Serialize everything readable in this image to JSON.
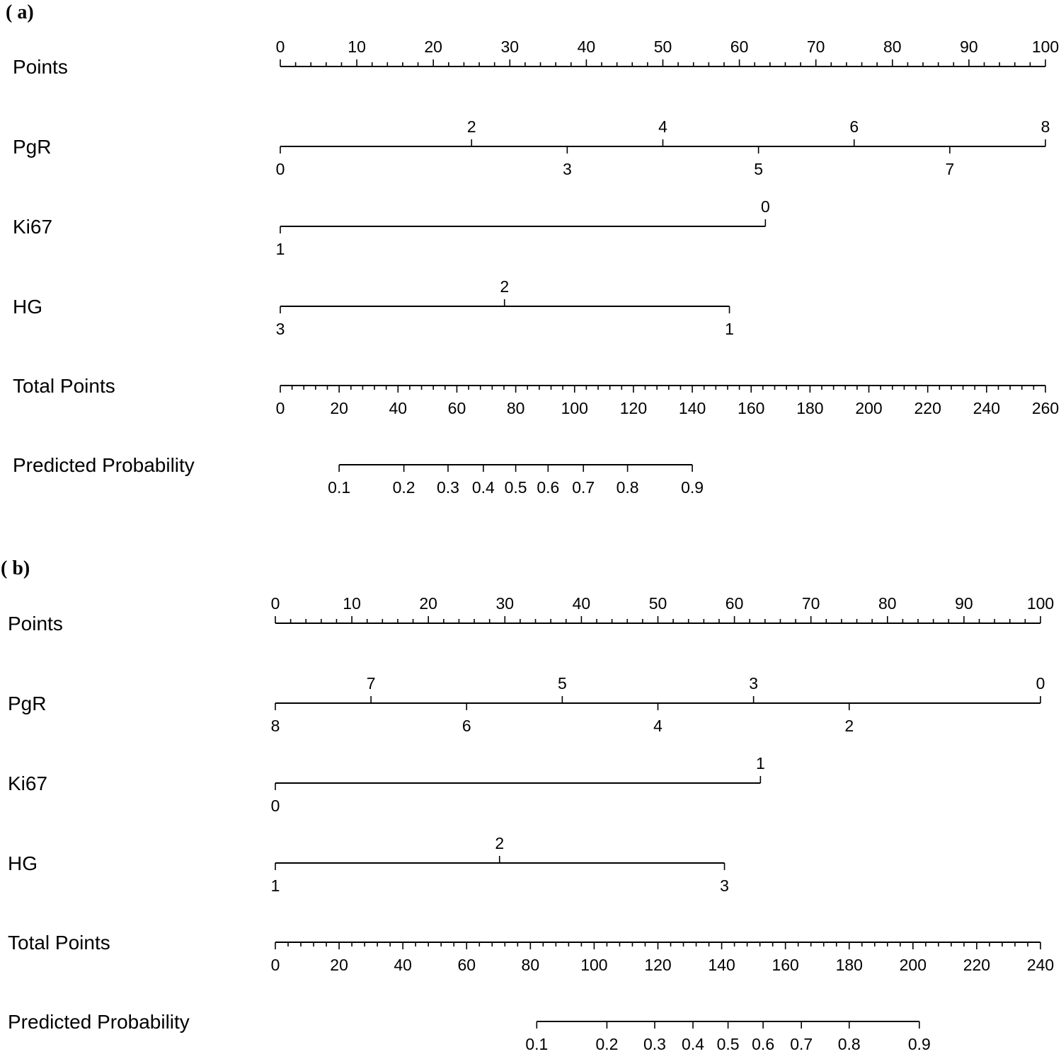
{
  "chart_data": [
    {
      "type": "nomogram",
      "panel_label": "( a)",
      "rows": [
        {
          "key": "points",
          "label": "Points",
          "scale": "points",
          "ticks_major": [
            0,
            10,
            20,
            30,
            40,
            50,
            60,
            70,
            80,
            90,
            100
          ],
          "minor_step": 2,
          "range": [
            0,
            100
          ]
        },
        {
          "key": "pgr",
          "label": "PgR",
          "levels_above": [
            {
              "value": "2",
              "points": 25
            },
            {
              "value": "4",
              "points": 50
            },
            {
              "value": "6",
              "points": 75
            },
            {
              "value": "8",
              "points": 100
            }
          ],
          "levels_below": [
            {
              "value": "0",
              "points": 0
            },
            {
              "value": "3",
              "points": 37.5
            },
            {
              "value": "5",
              "points": 62.5
            },
            {
              "value": "7",
              "points": 87.5
            }
          ],
          "range": [
            0,
            100
          ]
        },
        {
          "key": "ki67",
          "label": "Ki67",
          "levels_above": [
            {
              "value": "0",
              "points": 63.4
            }
          ],
          "levels_below": [
            {
              "value": "1",
              "points": 0
            }
          ],
          "range": [
            0,
            63.4
          ]
        },
        {
          "key": "hg",
          "label": "HG",
          "levels_above": [
            {
              "value": "2",
              "points": 29.3
            }
          ],
          "levels_below": [
            {
              "value": "3",
              "points": 0
            },
            {
              "value": "1",
              "points": 58.7
            }
          ],
          "range": [
            0,
            58.7
          ]
        },
        {
          "key": "total",
          "label": "Total Points",
          "scale": "total",
          "ticks_major": [
            0,
            20,
            40,
            60,
            80,
            100,
            120,
            140,
            160,
            180,
            200,
            220,
            240,
            260
          ],
          "minor_step": 4,
          "range": [
            0,
            260
          ]
        },
        {
          "key": "prob",
          "label": "Predicted Probability",
          "levels_below": [
            {
              "value": "0.1",
              "total": 20
            },
            {
              "value": "0.2",
              "total": 42
            },
            {
              "value": "0.3",
              "total": 57
            },
            {
              "value": "0.4",
              "total": 69
            },
            {
              "value": "0.5",
              "total": 80
            },
            {
              "value": "0.6",
              "total": 91
            },
            {
              "value": "0.7",
              "total": 103
            },
            {
              "value": "0.8",
              "total": 118
            },
            {
              "value": "0.9",
              "total": 140
            }
          ],
          "range_total": [
            20,
            140
          ]
        }
      ]
    },
    {
      "type": "nomogram",
      "panel_label": "( b)",
      "rows": [
        {
          "key": "points",
          "label": "Points",
          "scale": "points",
          "ticks_major": [
            0,
            10,
            20,
            30,
            40,
            50,
            60,
            70,
            80,
            90,
            100
          ],
          "minor_step": 2,
          "range": [
            0,
            100
          ]
        },
        {
          "key": "pgr",
          "label": "PgR",
          "levels_above": [
            {
              "value": "7",
              "points": 12.5
            },
            {
              "value": "5",
              "points": 37.5
            },
            {
              "value": "3",
              "points": 62.5
            },
            {
              "value": "0",
              "points": 100
            }
          ],
          "levels_below": [
            {
              "value": "8",
              "points": 0
            },
            {
              "value": "6",
              "points": 25
            },
            {
              "value": "4",
              "points": 50
            },
            {
              "value": "2",
              "points": 75
            }
          ],
          "range": [
            0,
            100
          ]
        },
        {
          "key": "ki67",
          "label": "Ki67",
          "levels_above": [
            {
              "value": "1",
              "points": 63.4
            }
          ],
          "levels_below": [
            {
              "value": "0",
              "points": 0
            }
          ],
          "range": [
            0,
            63.4
          ]
        },
        {
          "key": "hg",
          "label": "HG",
          "levels_above": [
            {
              "value": "2",
              "points": 29.3
            }
          ],
          "levels_below": [
            {
              "value": "1",
              "points": 0
            },
            {
              "value": "3",
              "points": 58.7
            }
          ],
          "range": [
            0,
            58.7
          ]
        },
        {
          "key": "total",
          "label": "Total Points",
          "scale": "total",
          "ticks_major": [
            0,
            20,
            40,
            60,
            80,
            100,
            120,
            140,
            160,
            180,
            200,
            220,
            240
          ],
          "minor_step": 4,
          "range": [
            0,
            240
          ]
        },
        {
          "key": "prob",
          "label": "Predicted Probability",
          "levels_below": [
            {
              "value": "0.1",
              "total": 82
            },
            {
              "value": "0.2",
              "total": 104
            },
            {
              "value": "0.3",
              "total": 119
            },
            {
              "value": "0.4",
              "total": 131
            },
            {
              "value": "0.5",
              "total": 142
            },
            {
              "value": "0.6",
              "total": 153
            },
            {
              "value": "0.7",
              "total": 165
            },
            {
              "value": "0.8",
              "total": 180
            },
            {
              "value": "0.9",
              "total": 202
            }
          ],
          "range_total": [
            82,
            202
          ]
        }
      ]
    }
  ]
}
